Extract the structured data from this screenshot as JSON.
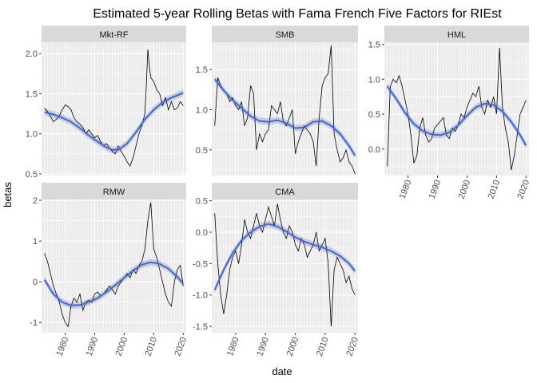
{
  "chart_data": {
    "type": "line",
    "title": "Estimated 5-year Rolling Betas with Fama French Five Factors for RIEst",
    "xlabel": "date",
    "ylabel": "betas",
    "layout": "facet_wrap 3 columns, free y scales",
    "x_ticks": [
      1980,
      1990,
      2000,
      2010,
      2020
    ],
    "xlim": [
      1972,
      2021
    ],
    "grid": true,
    "colors": {
      "panel_bg": "#ebebeb",
      "strip_bg": "#d9d9d9",
      "grid_major": "#ffffff",
      "beta_line": "#000000",
      "smooth_line": "#3366ff",
      "smooth_band": "#bfbfbf"
    },
    "facets": [
      {
        "name": "Mkt-RF",
        "ylim": [
          0.48,
          2.14
        ],
        "y_ticks": [
          0.5,
          1.0,
          1.5,
          2.0
        ],
        "y_tick_labels": [
          "0.5",
          "1.0",
          "1.5",
          "2.0"
        ],
        "series": [
          {
            "x": [
              1973.0,
              1974.0,
              1975.0,
              1976.0,
              1977.0,
              1978.0,
              1979.0,
              1980.0,
              1981.0,
              1982.0,
              1983.0,
              1984.0,
              1985.0,
              1986.0,
              1987.0,
              1988.0,
              1989.0,
              1990.0,
              1991.0,
              1992.0,
              1993.0,
              1994.0,
              1995.0,
              1996.0,
              1997.0,
              1998.0,
              1999.0,
              2000.0,
              2001.0,
              2002.0,
              2003.0,
              2004.0,
              2005.0,
              2006.0,
              2007.0,
              2007.5,
              2008.0,
              2008.5,
              2009.0,
              2010.0,
              2011.0,
              2012.0,
              2013.0,
              2014.0,
              2015.0,
              2016.0,
              2017.0,
              2018.0,
              2019.0,
              2020.0
            ],
            "y": [
              1.32,
              1.28,
              1.22,
              1.15,
              1.18,
              1.22,
              1.3,
              1.36,
              1.34,
              1.3,
              1.2,
              1.15,
              1.12,
              1.08,
              1.0,
              1.05,
              1.0,
              0.95,
              0.98,
              0.9,
              0.85,
              0.88,
              0.82,
              0.78,
              0.75,
              0.85,
              0.78,
              0.72,
              0.65,
              0.6,
              0.7,
              0.85,
              1.0,
              1.1,
              1.25,
              1.6,
              2.05,
              1.85,
              1.7,
              1.65,
              1.55,
              1.5,
              1.35,
              1.45,
              1.3,
              1.4,
              1.3,
              1.32,
              1.4,
              1.35
            ]
          },
          {
            "x": [
              1973.0,
              1976.0,
              1979.0,
              1982.0,
              1985.0,
              1988.0,
              1991.0,
              1994.0,
              1996.0,
              1998.0,
              2001.0,
              2004.0,
              2007.0,
              2010.0,
              2013.0,
              2016.0,
              2020.0
            ],
            "y": [
              1.27,
              1.24,
              1.2,
              1.15,
              1.07,
              0.98,
              0.9,
              0.83,
              0.8,
              0.8,
              0.88,
              1.02,
              1.18,
              1.3,
              1.39,
              1.45,
              1.51
            ]
          }
        ]
      },
      {
        "name": "SMB",
        "ylim": [
          0.18,
          1.84
        ],
        "y_ticks": [
          0.5,
          1.0,
          1.5
        ],
        "y_tick_labels": [
          "0.5",
          "1.0",
          "1.5"
        ],
        "series": [
          {
            "x": [
              1973.0,
              1974.0,
              1975.0,
              1976.0,
              1977.0,
              1978.0,
              1979.0,
              1980.0,
              1981.0,
              1982.0,
              1983.0,
              1984.0,
              1985.0,
              1986.0,
              1987.0,
              1988.0,
              1989.0,
              1990.0,
              1991.0,
              1992.0,
              1993.0,
              1994.0,
              1995.0,
              1996.0,
              1997.0,
              1998.0,
              1999.0,
              2000.0,
              2001.0,
              2002.0,
              2003.0,
              2004.0,
              2005.0,
              2006.0,
              2007.0,
              2008.0,
              2009.0,
              2010.0,
              2011.0,
              2012.0,
              2013.0,
              2014.0,
              2015.0,
              2016.0,
              2017.0,
              2018.0,
              2019.0,
              2020.0
            ],
            "y": [
              0.8,
              1.4,
              1.3,
              1.25,
              1.2,
              1.1,
              1.15,
              1.05,
              1.0,
              1.1,
              0.8,
              0.9,
              1.3,
              1.2,
              0.5,
              0.7,
              0.6,
              0.7,
              0.75,
              1.05,
              1.0,
              0.95,
              1.1,
              0.85,
              0.8,
              0.9,
              1.0,
              0.45,
              0.6,
              0.7,
              0.8,
              0.75,
              0.7,
              0.6,
              0.3,
              0.9,
              1.3,
              1.4,
              1.45,
              1.8,
              0.7,
              0.5,
              0.35,
              0.4,
              0.5,
              0.35,
              0.3,
              0.2
            ]
          },
          {
            "x": [
              1973.0,
              1976.0,
              1979.0,
              1982.0,
              1985.0,
              1988.0,
              1991.0,
              1994.0,
              1997.0,
              2000.0,
              2003.0,
              2006.0,
              2009.0,
              2012.0,
              2015.0,
              2018.0,
              2020.0
            ],
            "y": [
              1.38,
              1.24,
              1.12,
              1.02,
              0.92,
              0.86,
              0.85,
              0.87,
              0.83,
              0.77,
              0.78,
              0.85,
              0.86,
              0.8,
              0.7,
              0.55,
              0.43
            ]
          }
        ]
      },
      {
        "name": "HML",
        "ylim": [
          -0.38,
          1.53
        ],
        "y_ticks": [
          0.0,
          0.5,
          1.0,
          1.5
        ],
        "y_tick_labels": [
          "0.0",
          "0.5",
          "1.0",
          "1.5"
        ],
        "series": [
          {
            "x": [
              1973.0,
              1974.0,
              1975.0,
              1976.0,
              1977.0,
              1978.0,
              1979.0,
              1980.0,
              1981.0,
              1982.0,
              1983.0,
              1984.0,
              1985.0,
              1986.0,
              1987.0,
              1988.0,
              1989.0,
              1990.0,
              1991.0,
              1992.0,
              1993.0,
              1994.0,
              1995.0,
              1996.0,
              1997.0,
              1998.0,
              1999.0,
              2000.0,
              2001.0,
              2002.0,
              2003.0,
              2004.0,
              2005.0,
              2006.0,
              2007.0,
              2008.0,
              2009.0,
              2010.0,
              2011.0,
              2012.0,
              2013.0,
              2014.0,
              2015.0,
              2016.0,
              2017.0,
              2018.0,
              2019.0,
              2020.0
            ],
            "y": [
              -0.25,
              0.9,
              1.0,
              0.95,
              1.05,
              0.9,
              0.7,
              0.5,
              0.2,
              -0.2,
              -0.1,
              0.3,
              0.45,
              0.2,
              0.1,
              0.15,
              0.3,
              0.35,
              0.4,
              0.45,
              0.2,
              0.15,
              0.3,
              0.25,
              0.35,
              0.5,
              0.45,
              0.6,
              0.7,
              0.8,
              0.75,
              0.9,
              0.6,
              0.5,
              0.7,
              0.6,
              0.75,
              0.5,
              1.45,
              0.6,
              0.3,
              0.1,
              -0.3,
              -0.1,
              0.2,
              0.5,
              0.6,
              0.7
            ]
          },
          {
            "x": [
              1973.0,
              1976.0,
              1979.0,
              1982.0,
              1985.0,
              1988.0,
              1991.0,
              1994.0,
              1997.0,
              2000.0,
              2003.0,
              2006.0,
              2009.0,
              2012.0,
              2015.0,
              2018.0,
              2020.0
            ],
            "y": [
              0.9,
              0.72,
              0.52,
              0.36,
              0.26,
              0.21,
              0.2,
              0.24,
              0.34,
              0.48,
              0.6,
              0.65,
              0.63,
              0.54,
              0.39,
              0.2,
              0.05
            ]
          }
        ]
      },
      {
        "name": "RMW",
        "ylim": [
          -1.25,
          2.02
        ],
        "y_ticks": [
          -1,
          0,
          1,
          2
        ],
        "y_tick_labels": [
          "-1",
          "0",
          "1",
          "2"
        ],
        "series": [
          {
            "x": [
              1973.0,
              1974.0,
              1975.0,
              1976.0,
              1977.0,
              1978.0,
              1979.0,
              1980.0,
              1981.0,
              1982.0,
              1983.0,
              1984.0,
              1985.0,
              1986.0,
              1987.0,
              1988.0,
              1989.0,
              1990.0,
              1991.0,
              1992.0,
              1993.0,
              1994.0,
              1995.0,
              1996.0,
              1997.0,
              1998.0,
              1999.0,
              2000.0,
              2001.0,
              2002.0,
              2003.0,
              2004.0,
              2005.0,
              2006.0,
              2007.0,
              2008.0,
              2009.0,
              2010.0,
              2011.0,
              2012.0,
              2013.0,
              2014.0,
              2015.0,
              2016.0,
              2017.0,
              2018.0,
              2019.0,
              2020.0
            ],
            "y": [
              0.7,
              0.5,
              0.2,
              -0.1,
              -0.3,
              -0.5,
              -0.8,
              -1.0,
              -1.1,
              -0.6,
              -0.4,
              -0.5,
              -0.3,
              -0.7,
              -0.5,
              -0.45,
              -0.5,
              -0.3,
              -0.25,
              -0.35,
              -0.3,
              -0.2,
              -0.1,
              -0.2,
              -0.3,
              -0.1,
              0.0,
              0.1,
              0.2,
              0.1,
              0.3,
              0.2,
              0.4,
              0.5,
              0.8,
              1.5,
              1.95,
              0.8,
              0.6,
              0.3,
              0.0,
              -0.3,
              -0.5,
              -0.6,
              0.0,
              0.3,
              0.4,
              -0.1
            ]
          },
          {
            "x": [
              1973.0,
              1976.0,
              1979.0,
              1982.0,
              1985.0,
              1988.0,
              1991.0,
              1994.0,
              1997.0,
              2000.0,
              2003.0,
              2006.0,
              2009.0,
              2012.0,
              2015.0,
              2018.0,
              2020.0
            ],
            "y": [
              0.05,
              -0.3,
              -0.5,
              -0.58,
              -0.57,
              -0.5,
              -0.4,
              -0.25,
              -0.08,
              0.1,
              0.28,
              0.42,
              0.48,
              0.44,
              0.32,
              0.12,
              -0.05
            ]
          }
        ]
      },
      {
        "name": "CMA",
        "ylim": [
          -1.6,
          0.52
        ],
        "y_ticks": [
          -1.5,
          -1.0,
          -0.5,
          0.0,
          0.5
        ],
        "y_tick_labels": [
          "-1.5",
          "-1.0",
          "-0.5",
          "0.0",
          "0.5"
        ],
        "series": [
          {
            "x": [
              1973.0,
              1974.0,
              1975.0,
              1976.0,
              1977.0,
              1978.0,
              1979.0,
              1980.0,
              1981.0,
              1982.0,
              1983.0,
              1984.0,
              1985.0,
              1986.0,
              1987.0,
              1988.0,
              1989.0,
              1990.0,
              1991.0,
              1992.0,
              1993.0,
              1994.0,
              1995.0,
              1996.0,
              1997.0,
              1998.0,
              1999.0,
              2000.0,
              2001.0,
              2002.0,
              2003.0,
              2004.0,
              2005.0,
              2006.0,
              2007.0,
              2008.0,
              2009.0,
              2010.0,
              2011.0,
              2012.0,
              2013.0,
              2014.0,
              2015.0,
              2016.0,
              2017.0,
              2018.0,
              2019.0,
              2020.0
            ],
            "y": [
              0.3,
              -0.5,
              -1.0,
              -1.3,
              -1.0,
              -0.6,
              -0.4,
              -0.3,
              -0.5,
              -0.2,
              0.2,
              0.0,
              -0.1,
              0.1,
              0.3,
              0.1,
              0.0,
              0.2,
              0.4,
              0.25,
              0.1,
              0.45,
              0.2,
              0.0,
              -0.1,
              0.1,
              0.0,
              -0.2,
              -0.3,
              -0.1,
              -0.2,
              -0.4,
              -0.3,
              -0.2,
              0.0,
              -0.3,
              -0.2,
              -0.1,
              -0.5,
              -1.5,
              -0.6,
              -0.4,
              -0.5,
              -0.6,
              -0.8,
              -0.7,
              -0.9,
              -1.0
            ]
          },
          {
            "x": [
              1973.0,
              1976.0,
              1979.0,
              1982.0,
              1985.0,
              1988.0,
              1991.0,
              1994.0,
              1997.0,
              2000.0,
              2003.0,
              2006.0,
              2009.0,
              2012.0,
              2015.0,
              2018.0,
              2020.0
            ],
            "y": [
              -0.92,
              -0.6,
              -0.33,
              -0.13,
              0.0,
              0.09,
              0.13,
              0.09,
              0.01,
              -0.08,
              -0.15,
              -0.2,
              -0.24,
              -0.3,
              -0.38,
              -0.5,
              -0.62
            ]
          }
        ]
      }
    ]
  }
}
